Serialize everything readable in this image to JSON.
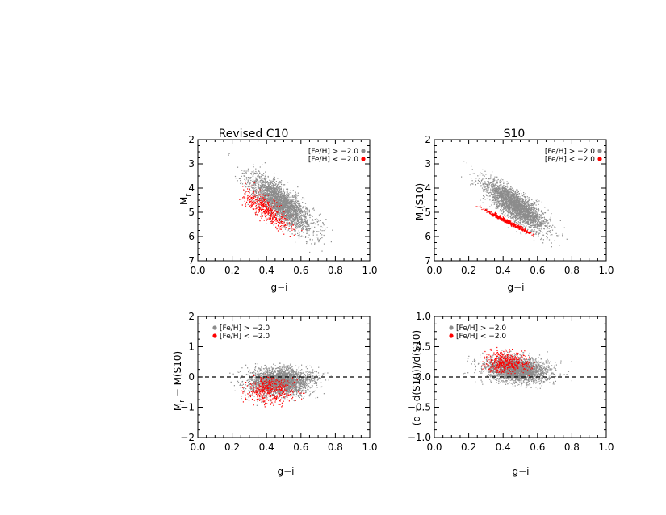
{
  "chart_data": [
    {
      "type": "scatter",
      "title": "Revised C10",
      "xlabel": "g−i",
      "ylabel_main": "M",
      "ylabel_sub": "r",
      "ylabel_tail": "",
      "xlim": [
        0.0,
        1.0
      ],
      "ylim": [
        7,
        2
      ],
      "y_inverted": true,
      "xticks": [
        "0.0",
        "0.2",
        "0.4",
        "0.6",
        "0.8",
        "1.0"
      ],
      "yticks": [
        "2",
        "3",
        "4",
        "5",
        "6",
        "7"
      ],
      "legend": {
        "position": "top-right",
        "marker_side": "right",
        "entries": [
          "[Fe/H] > −2.0",
          "[Fe/H] < −2.0"
        ]
      },
      "zero_line": false,
      "series": [
        {
          "name": "[Fe/H] > −2.0",
          "color": "#8c8c8c",
          "count": 2600,
          "x_center": 0.48,
          "x_spread": 0.09,
          "x_min": 0.15,
          "x_max": 0.85,
          "y_at_x": [
            [
              0.2,
              3.3
            ],
            [
              0.4,
              4.2
            ],
            [
              0.6,
              5.2
            ],
            [
              0.8,
              6.1
            ]
          ],
          "y_spread": 0.35,
          "y_clip": [
            2.2,
            6.9
          ]
        },
        {
          "name": "[Fe/H] < −2.0",
          "color": "#ff0000",
          "count": 420,
          "x_center": 0.4,
          "x_spread": 0.07,
          "x_min": 0.22,
          "x_max": 0.62,
          "y_at_x": [
            [
              0.2,
              3.9
            ],
            [
              0.4,
              4.9
            ],
            [
              0.6,
              5.9
            ]
          ],
          "y_spread": 0.25,
          "y_clip": [
            3.7,
            6.0
          ]
        }
      ]
    },
    {
      "type": "scatter",
      "title": "S10",
      "xlabel": "g−i",
      "ylabel_main": "M",
      "ylabel_sub": "r",
      "ylabel_tail": "(S10)",
      "xlim": [
        0.0,
        1.0
      ],
      "ylim": [
        7,
        2
      ],
      "y_inverted": true,
      "xticks": [
        "0.0",
        "0.2",
        "0.4",
        "0.6",
        "0.8",
        "1.0"
      ],
      "yticks": [
        "2",
        "3",
        "4",
        "5",
        "6",
        "7"
      ],
      "legend": {
        "position": "top-right",
        "marker_side": "right",
        "entries": [
          "[Fe/H] > −2.0",
          "[Fe/H] < −2.0"
        ]
      },
      "zero_line": false,
      "series": [
        {
          "name": "[Fe/H] > −2.0",
          "color": "#8c8c8c",
          "count": 2600,
          "x_center": 0.47,
          "x_spread": 0.09,
          "x_min": 0.15,
          "x_max": 0.8,
          "y_at_x": [
            [
              0.2,
              3.4
            ],
            [
              0.4,
              4.4
            ],
            [
              0.6,
              5.3
            ],
            [
              0.8,
              6.3
            ]
          ],
          "y_spread": 0.3,
          "y_clip": [
            2.8,
            6.8
          ]
        },
        {
          "name": "[Fe/H] < −2.0",
          "color": "#ff0000",
          "count": 450,
          "x_center": 0.42,
          "x_spread": 0.07,
          "x_min": 0.24,
          "x_max": 0.58,
          "y_at_x": [
            [
              0.24,
              4.7
            ],
            [
              0.4,
              5.3
            ],
            [
              0.58,
              5.95
            ]
          ],
          "y_spread": 0.04,
          "y_clip": [
            4.5,
            6.1
          ]
        }
      ]
    },
    {
      "type": "scatter",
      "title": "",
      "xlabel": "g−i",
      "ylabel_main": "M",
      "ylabel_sub": "r",
      "ylabel_tail": " − M(S10)",
      "xlim": [
        0.0,
        1.0
      ],
      "ylim": [
        -2,
        2
      ],
      "y_inverted": false,
      "xticks": [
        "0.0",
        "0.2",
        "0.4",
        "0.6",
        "0.8",
        "1.0"
      ],
      "yticks": [
        "−2",
        "−1",
        "0",
        "1",
        "2"
      ],
      "ytick_values": [
        -2,
        -1,
        0,
        1,
        2
      ],
      "legend": {
        "position": "top-left",
        "marker_side": "left",
        "entries": [
          "[Fe/H] > −2.0",
          "[Fe/H] < −2.0"
        ]
      },
      "zero_line": true,
      "series": [
        {
          "name": "[Fe/H] > −2.0",
          "color": "#8c8c8c",
          "count": 2600,
          "x_center": 0.48,
          "x_spread": 0.09,
          "x_min": 0.15,
          "x_max": 0.85,
          "y_at_x": [
            [
              0.2,
              -0.2
            ],
            [
              0.8,
              -0.1
            ]
          ],
          "y_spread": 0.22,
          "y_clip": [
            -1.6,
            0.6
          ]
        },
        {
          "name": "[Fe/H] < −2.0",
          "color": "#ff0000",
          "count": 420,
          "x_center": 0.42,
          "x_spread": 0.07,
          "x_min": 0.24,
          "x_max": 0.62,
          "y_at_x": [
            [
              0.24,
              -0.45
            ],
            [
              0.62,
              -0.45
            ]
          ],
          "y_spread": 0.22,
          "y_clip": [
            -1.1,
            0.1
          ]
        }
      ]
    },
    {
      "type": "scatter",
      "title": "",
      "xlabel": "g−i",
      "ylabel_main": "(d − d(S10))/d(S10)",
      "ylabel_sub": "",
      "ylabel_tail": "",
      "xlim": [
        0.0,
        1.0
      ],
      "ylim": [
        -1.0,
        1.0
      ],
      "y_inverted": false,
      "xticks": [
        "0.0",
        "0.2",
        "0.4",
        "0.6",
        "0.8",
        "1.0"
      ],
      "yticks": [
        "−1.0",
        "−0.5",
        "0.0",
        "0.5",
        "1.0"
      ],
      "ytick_values": [
        -1.0,
        -0.5,
        0.0,
        0.5,
        1.0
      ],
      "legend": {
        "position": "top-left",
        "marker_side": "left",
        "entries": [
          "[Fe/H] > −2.0",
          "[Fe/H] < −2.0"
        ]
      },
      "zero_line": true,
      "series": [
        {
          "name": "[Fe/H] > −2.0",
          "color": "#8c8c8c",
          "count": 2600,
          "x_center": 0.48,
          "x_spread": 0.09,
          "x_min": 0.15,
          "x_max": 0.85,
          "y_at_x": [
            [
              0.2,
              0.18
            ],
            [
              0.8,
              0.05
            ]
          ],
          "y_spread": 0.1,
          "y_clip": [
            -0.25,
            0.55
          ]
        },
        {
          "name": "[Fe/H] < −2.0",
          "color": "#ff0000",
          "count": 420,
          "x_center": 0.42,
          "x_spread": 0.07,
          "x_min": 0.26,
          "x_max": 0.62,
          "y_at_x": [
            [
              0.26,
              0.24
            ],
            [
              0.62,
              0.22
            ]
          ],
          "y_spread": 0.09,
          "y_clip": [
            0.02,
            0.5
          ]
        }
      ]
    }
  ]
}
